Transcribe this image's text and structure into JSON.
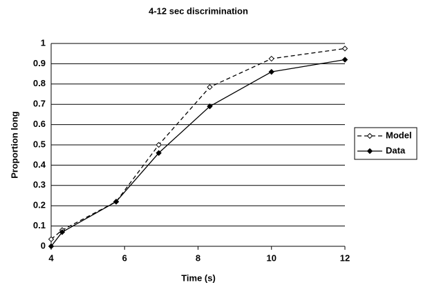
{
  "chart_data": {
    "type": "line",
    "title": "4-12 sec discrimination",
    "x_label": "Time (s)",
    "y_label": "Proportion long",
    "x": [
      4,
      4.3,
      5.77,
      6.93,
      8.32,
      10,
      12
    ],
    "series": [
      {
        "name": "Model",
        "color": "#000000",
        "line_style": "dashed",
        "marker": "open-diamond",
        "values": [
          0.035,
          0.08,
          0.22,
          0.5,
          0.785,
          0.925,
          0.975
        ]
      },
      {
        "name": "Data",
        "color": "#000000",
        "line_style": "solid",
        "marker": "filled-diamond",
        "values": [
          0.0,
          0.07,
          0.22,
          0.46,
          0.69,
          0.86,
          0.92
        ]
      }
    ],
    "xlim": [
      4,
      12
    ],
    "xticks": [
      4,
      6,
      8,
      10,
      12
    ],
    "ylim": [
      0,
      1
    ],
    "yticks": [
      0,
      0.1,
      0.2,
      0.3,
      0.4,
      0.5,
      0.6,
      0.7,
      0.8,
      0.9,
      1
    ],
    "grid": true,
    "legend": "right"
  }
}
